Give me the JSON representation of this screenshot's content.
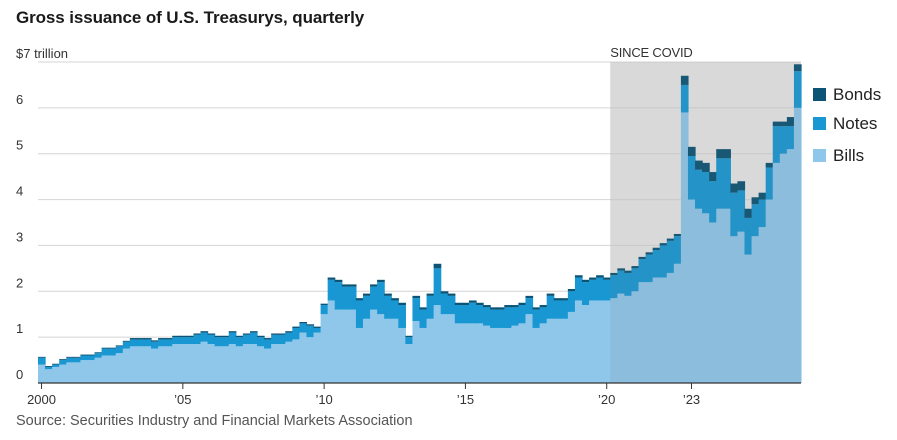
{
  "title": "Gross issuance of U.S. Treasurys, quarterly",
  "source": "Source: Securities Industry and Financial Markets Association",
  "colors": {
    "bills": "#8fc7ea",
    "notes": "#1897d3",
    "bonds": "#0b5475",
    "shade": "#e6e6e6",
    "grid": "#d4d4d4",
    "axis": "#333333"
  },
  "chart_data": {
    "type": "bar",
    "stacked": true,
    "title": "Gross issuance of U.S. Treasurys, quarterly",
    "ylabel": "$7 trillion",
    "ylim": [
      0,
      7
    ],
    "y_ticks": [
      {
        "value": 0,
        "label": "0"
      },
      {
        "value": 1,
        "label": "1"
      },
      {
        "value": 2,
        "label": "2"
      },
      {
        "value": 3,
        "label": "3"
      },
      {
        "value": 4,
        "label": "4"
      },
      {
        "value": 5,
        "label": "5"
      },
      {
        "value": 6,
        "label": "6"
      },
      {
        "value": 7,
        "label": "$7 trillion"
      }
    ],
    "x_ticks": [
      {
        "year": 2000,
        "label": "2000"
      },
      {
        "year": 2005,
        "label": "’05"
      },
      {
        "year": 2010,
        "label": "’10"
      },
      {
        "year": 2015,
        "label": "’15"
      },
      {
        "year": 2020,
        "label": "’20"
      },
      {
        "year": 2023,
        "label": "’23"
      }
    ],
    "start_year": 2000,
    "start_quarter": 1,
    "legend": [
      "Bonds",
      "Notes",
      "Bills"
    ],
    "legend_position": "right",
    "annotation": {
      "text": "SINCE COVID",
      "from_year": 2020.25
    },
    "series": [
      {
        "name": "Bills",
        "values": [
          0.4,
          0.3,
          0.35,
          0.4,
          0.45,
          0.45,
          0.5,
          0.5,
          0.55,
          0.6,
          0.6,
          0.65,
          0.75,
          0.8,
          0.8,
          0.8,
          0.75,
          0.8,
          0.8,
          0.85,
          0.85,
          0.85,
          0.85,
          0.9,
          0.85,
          0.8,
          0.8,
          0.85,
          0.8,
          0.85,
          0.85,
          0.8,
          0.75,
          0.85,
          0.85,
          0.9,
          0.95,
          1.1,
          1.0,
          1.1,
          1.5,
          1.8,
          1.6,
          1.6,
          1.6,
          1.2,
          1.4,
          1.6,
          1.5,
          1.4,
          1.4,
          1.2,
          0.85,
          1.35,
          1.2,
          1.4,
          1.7,
          1.5,
          1.5,
          1.3,
          1.3,
          1.3,
          1.3,
          1.25,
          1.2,
          1.2,
          1.2,
          1.25,
          1.3,
          1.5,
          1.2,
          1.3,
          1.4,
          1.4,
          1.4,
          1.55,
          1.8,
          1.7,
          1.8,
          1.8,
          1.8,
          1.85,
          1.95,
          1.9,
          2.0,
          2.2,
          2.2,
          2.3,
          2.3,
          2.4,
          2.6,
          5.9,
          4.0,
          3.8,
          3.7,
          3.5,
          3.8,
          3.8,
          3.2,
          3.3,
          2.8,
          3.2,
          3.4,
          4.0,
          4.8,
          5.0,
          5.1,
          6.0
        ],
        "color": "#8fc7ea"
      },
      {
        "name": "Notes",
        "values": [
          0.15,
          0.05,
          0.05,
          0.1,
          0.1,
          0.1,
          0.1,
          0.1,
          0.1,
          0.15,
          0.15,
          0.15,
          0.15,
          0.15,
          0.15,
          0.15,
          0.15,
          0.15,
          0.15,
          0.15,
          0.15,
          0.15,
          0.2,
          0.2,
          0.2,
          0.2,
          0.2,
          0.25,
          0.2,
          0.2,
          0.25,
          0.2,
          0.2,
          0.2,
          0.2,
          0.2,
          0.25,
          0.2,
          0.25,
          0.1,
          0.2,
          0.45,
          0.6,
          0.5,
          0.5,
          0.6,
          0.5,
          0.5,
          0.7,
          0.5,
          0.4,
          0.5,
          0.15,
          0.5,
          0.4,
          0.5,
          0.8,
          0.45,
          0.4,
          0.4,
          0.4,
          0.45,
          0.4,
          0.4,
          0.4,
          0.4,
          0.45,
          0.4,
          0.4,
          0.35,
          0.4,
          0.35,
          0.5,
          0.4,
          0.4,
          0.45,
          0.5,
          0.5,
          0.45,
          0.5,
          0.45,
          0.5,
          0.5,
          0.5,
          0.5,
          0.5,
          0.6,
          0.6,
          0.7,
          0.7,
          0.6,
          0.6,
          0.95,
          0.85,
          0.9,
          0.9,
          1.1,
          1.1,
          0.95,
          0.9,
          0.8,
          0.7,
          0.6,
          0.7,
          0.8,
          0.6,
          0.5,
          0.8
        ],
        "color": "#1897d3"
      },
      {
        "name": "Bonds",
        "values": [
          0.02,
          0.02,
          0.02,
          0.02,
          0.02,
          0.02,
          0.02,
          0.02,
          0.02,
          0.02,
          0.02,
          0.02,
          0.02,
          0.03,
          0.03,
          0.03,
          0.03,
          0.03,
          0.03,
          0.03,
          0.03,
          0.03,
          0.03,
          0.03,
          0.03,
          0.03,
          0.03,
          0.03,
          0.03,
          0.03,
          0.03,
          0.03,
          0.03,
          0.03,
          0.03,
          0.03,
          0.03,
          0.03,
          0.03,
          0.03,
          0.03,
          0.05,
          0.05,
          0.05,
          0.05,
          0.05,
          0.05,
          0.05,
          0.05,
          0.05,
          0.05,
          0.05,
          0.03,
          0.05,
          0.05,
          0.05,
          0.1,
          0.05,
          0.05,
          0.05,
          0.05,
          0.05,
          0.05,
          0.05,
          0.05,
          0.05,
          0.05,
          0.05,
          0.05,
          0.05,
          0.05,
          0.05,
          0.05,
          0.05,
          0.05,
          0.05,
          0.05,
          0.05,
          0.05,
          0.05,
          0.05,
          0.05,
          0.05,
          0.05,
          0.05,
          0.05,
          0.05,
          0.05,
          0.05,
          0.05,
          0.05,
          0.2,
          0.2,
          0.2,
          0.2,
          0.2,
          0.2,
          0.2,
          0.2,
          0.2,
          0.2,
          0.15,
          0.15,
          0.1,
          0.1,
          0.1,
          0.2,
          0.15
        ],
        "color": "#0b5475"
      }
    ]
  }
}
